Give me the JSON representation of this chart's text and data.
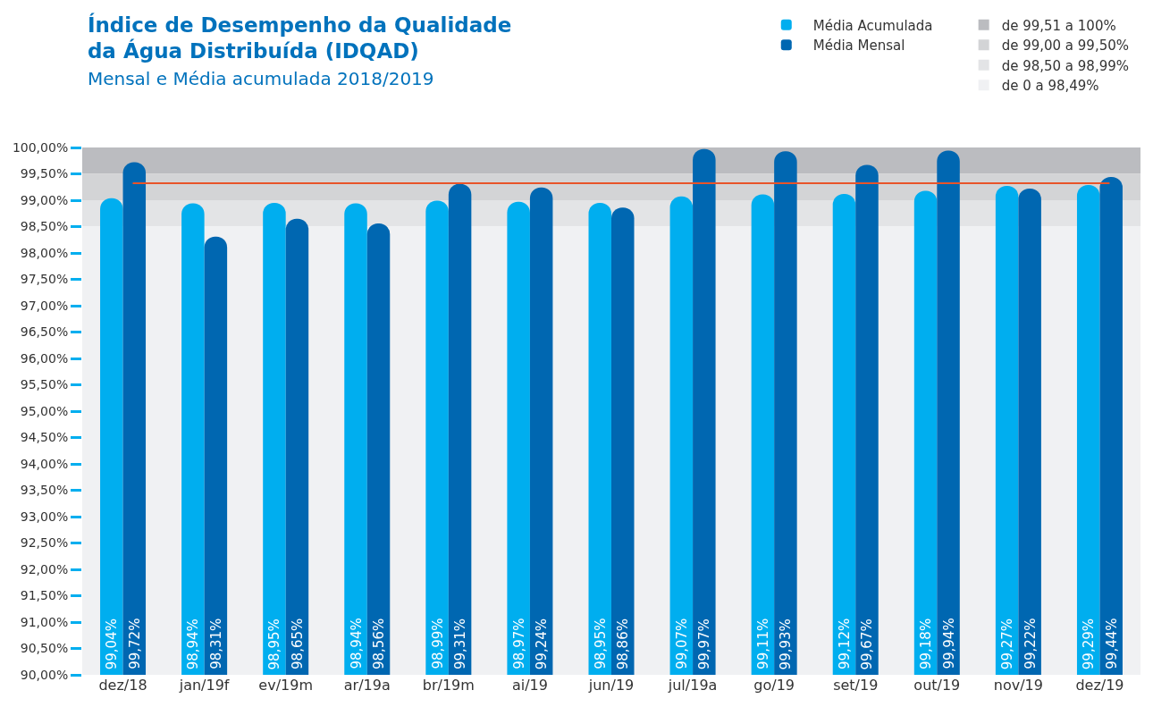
{
  "chart_data": {
    "type": "bar",
    "title": "Índice de Desempenho da Qualidade da Água Distribuída (IDQAD)",
    "subtitle": "Mensal e Média acumulada 2018/2019",
    "categories": [
      "dez/18",
      "jan/19f",
      "ev/19m",
      "ar/19a",
      "br/19m",
      "ai/19",
      "jun/19",
      "jul/19a",
      "go/19",
      "set/19",
      "out/19",
      "nov/19",
      "dez/19"
    ],
    "series": [
      {
        "name": "Média Acumulada",
        "color": "#00aeef",
        "values": [
          99.04,
          98.94,
          98.95,
          98.94,
          98.99,
          98.97,
          98.95,
          99.07,
          99.11,
          99.12,
          99.18,
          99.27,
          99.29
        ],
        "value_labels": [
          "99,04%",
          "98,94%",
          "98,95%",
          "98,94%",
          "98,99%",
          "98,97%",
          "98,95%",
          "99,07%",
          "99,11%",
          "99,12%",
          "99,18%",
          "99,27%",
          "99,29%"
        ]
      },
      {
        "name": "Média Mensal",
        "color": "#0067b1",
        "values": [
          99.72,
          98.31,
          98.65,
          98.56,
          99.31,
          99.24,
          98.86,
          99.97,
          99.93,
          99.67,
          99.94,
          99.22,
          99.44
        ],
        "value_labels": [
          "99,72%",
          "98,31%",
          "98,65%",
          "98,56%",
          "99,31%",
          "99,24%",
          "98,86%",
          "99,97%",
          "99,93%",
          "99,67%",
          "99,94%",
          "99,22%",
          "99,44%"
        ]
      }
    ],
    "ylim": [
      90,
      100
    ],
    "yticks": [
      {
        "value": 90,
        "label": "90,00%"
      },
      {
        "value": 90.5,
        "label": "90,50%"
      },
      {
        "value": 91,
        "label": "91,00%"
      },
      {
        "value": 91.5,
        "label": "91,50%"
      },
      {
        "value": 92,
        "label": "92,00%"
      },
      {
        "value": 92.5,
        "label": "92,50%"
      },
      {
        "value": 93,
        "label": "93,00%"
      },
      {
        "value": 93.5,
        "label": "93,50%"
      },
      {
        "value": 94,
        "label": "94,00%"
      },
      {
        "value": 94.5,
        "label": "94,50%"
      },
      {
        "value": 95,
        "label": "95,00%"
      },
      {
        "value": 95.5,
        "label": "95,50%"
      },
      {
        "value": 96,
        "label": "96,00%"
      },
      {
        "value": 96.5,
        "label": "96,50%"
      },
      {
        "value": 97,
        "label": "97,00%"
      },
      {
        "value": 97.5,
        "label": "97,50%"
      },
      {
        "value": 98,
        "label": "98,00%"
      },
      {
        "value": 98.5,
        "label": "98,50%"
      },
      {
        "value": 99,
        "label": "99,00%"
      },
      {
        "value": 99.5,
        "label": "99,50%"
      },
      {
        "value": 100,
        "label": "100,00%"
      }
    ],
    "bands": [
      {
        "axis": "y",
        "from": 99.5,
        "to": 100,
        "label": "de 99,51 a 100%",
        "color": "#bbbcc0"
      },
      {
        "axis": "y",
        "from": 99,
        "to": 99.5,
        "label": "de 99,00 a 99,50%",
        "color": "#d3d4d6"
      },
      {
        "axis": "y",
        "from": 98.5,
        "to": 99,
        "label": "de 98,50 a 98,99%",
        "color": "#e3e4e6"
      },
      {
        "axis": "y",
        "from": 90,
        "to": 98.5,
        "label": "de 0 a 98,49%",
        "color": "#f0f1f3"
      }
    ],
    "ref_lines": [
      {
        "axis": "y",
        "value": 99.32,
        "color": "#e8542a",
        "line_style": "solid"
      }
    ],
    "grid": false,
    "legend": "top right"
  }
}
